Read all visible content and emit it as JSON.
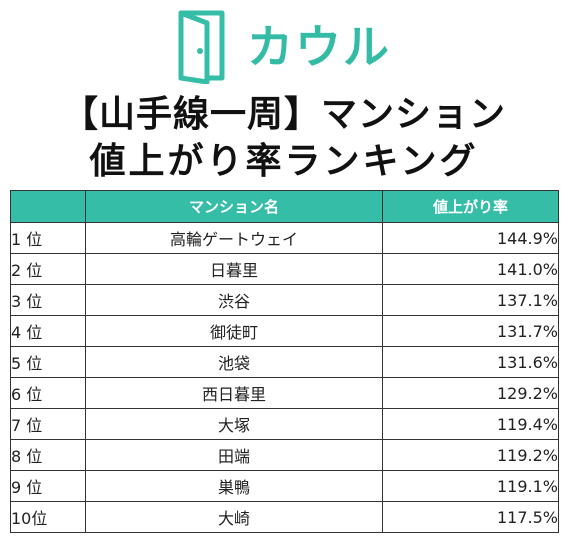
{
  "brand": {
    "name": "カウル",
    "accent_color": "#35bda8",
    "icon": "door-logo-icon"
  },
  "title": {
    "line1": "【山手線一周】マンション",
    "line2": "値上がり率ランキング"
  },
  "table": {
    "headers": [
      "",
      "マンション名",
      "値上がり率"
    ],
    "rows": [
      {
        "rank": "1 位",
        "name": "高輪ゲートウェイ",
        "rate": "144.9%"
      },
      {
        "rank": "2 位",
        "name": "日暮里",
        "rate": "141.0%"
      },
      {
        "rank": "3 位",
        "name": "渋谷",
        "rate": "137.1%"
      },
      {
        "rank": "4 位",
        "name": "御徒町",
        "rate": "131.7%"
      },
      {
        "rank": "5 位",
        "name": "池袋",
        "rate": "131.6%"
      },
      {
        "rank": "6 位",
        "name": "西日暮里",
        "rate": "129.2%"
      },
      {
        "rank": "7 位",
        "name": "大塚",
        "rate": "119.4%"
      },
      {
        "rank": "8 位",
        "name": "田端",
        "rate": "119.2%"
      },
      {
        "rank": "9 位",
        "name": "巣鴨",
        "rate": "119.1%"
      },
      {
        "rank": "10位",
        "name": "大崎",
        "rate": "117.5%"
      }
    ]
  }
}
